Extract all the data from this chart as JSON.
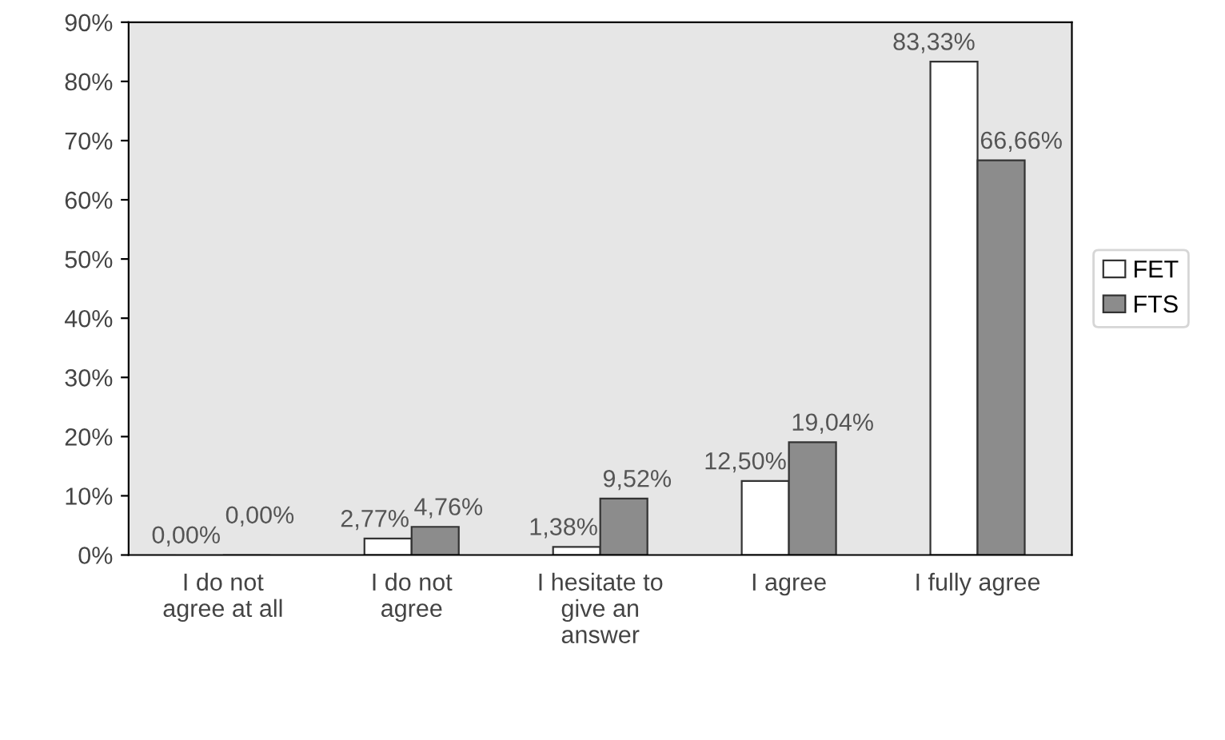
{
  "chart_data": {
    "type": "bar",
    "categories": [
      "I do not\nagree at all",
      "I do not\nagree",
      "I hesitate to\ngive an\nanswer",
      "I agree",
      "I fully agree"
    ],
    "series": [
      {
        "name": "FET",
        "color": "#ffffff",
        "values": [
          0.0,
          2.77,
          1.38,
          12.5,
          83.33
        ],
        "value_labels": [
          "0,00%",
          "2,77%",
          "1,38%",
          "12,50%",
          "83,33%"
        ]
      },
      {
        "name": "FTS",
        "color": "#8c8c8c",
        "values": [
          0.0,
          4.76,
          9.52,
          19.04,
          66.66
        ],
        "value_labels": [
          "0,00%",
          "4,76%",
          "9,52%",
          "19,04%",
          "66,66%"
        ]
      }
    ],
    "ylim": [
      0,
      90
    ],
    "yticks": [
      {
        "value": 0,
        "label": "0%"
      },
      {
        "value": 10,
        "label": "10%"
      },
      {
        "value": 20,
        "label": "20%"
      },
      {
        "value": 30,
        "label": "30%"
      },
      {
        "value": 40,
        "label": "40%"
      },
      {
        "value": 50,
        "label": "50%"
      },
      {
        "value": 60,
        "label": "60%"
      },
      {
        "value": 70,
        "label": "70%"
      },
      {
        "value": 80,
        "label": "80%"
      },
      {
        "value": 90,
        "label": "90%"
      }
    ],
    "grid": false,
    "legend": "right"
  }
}
